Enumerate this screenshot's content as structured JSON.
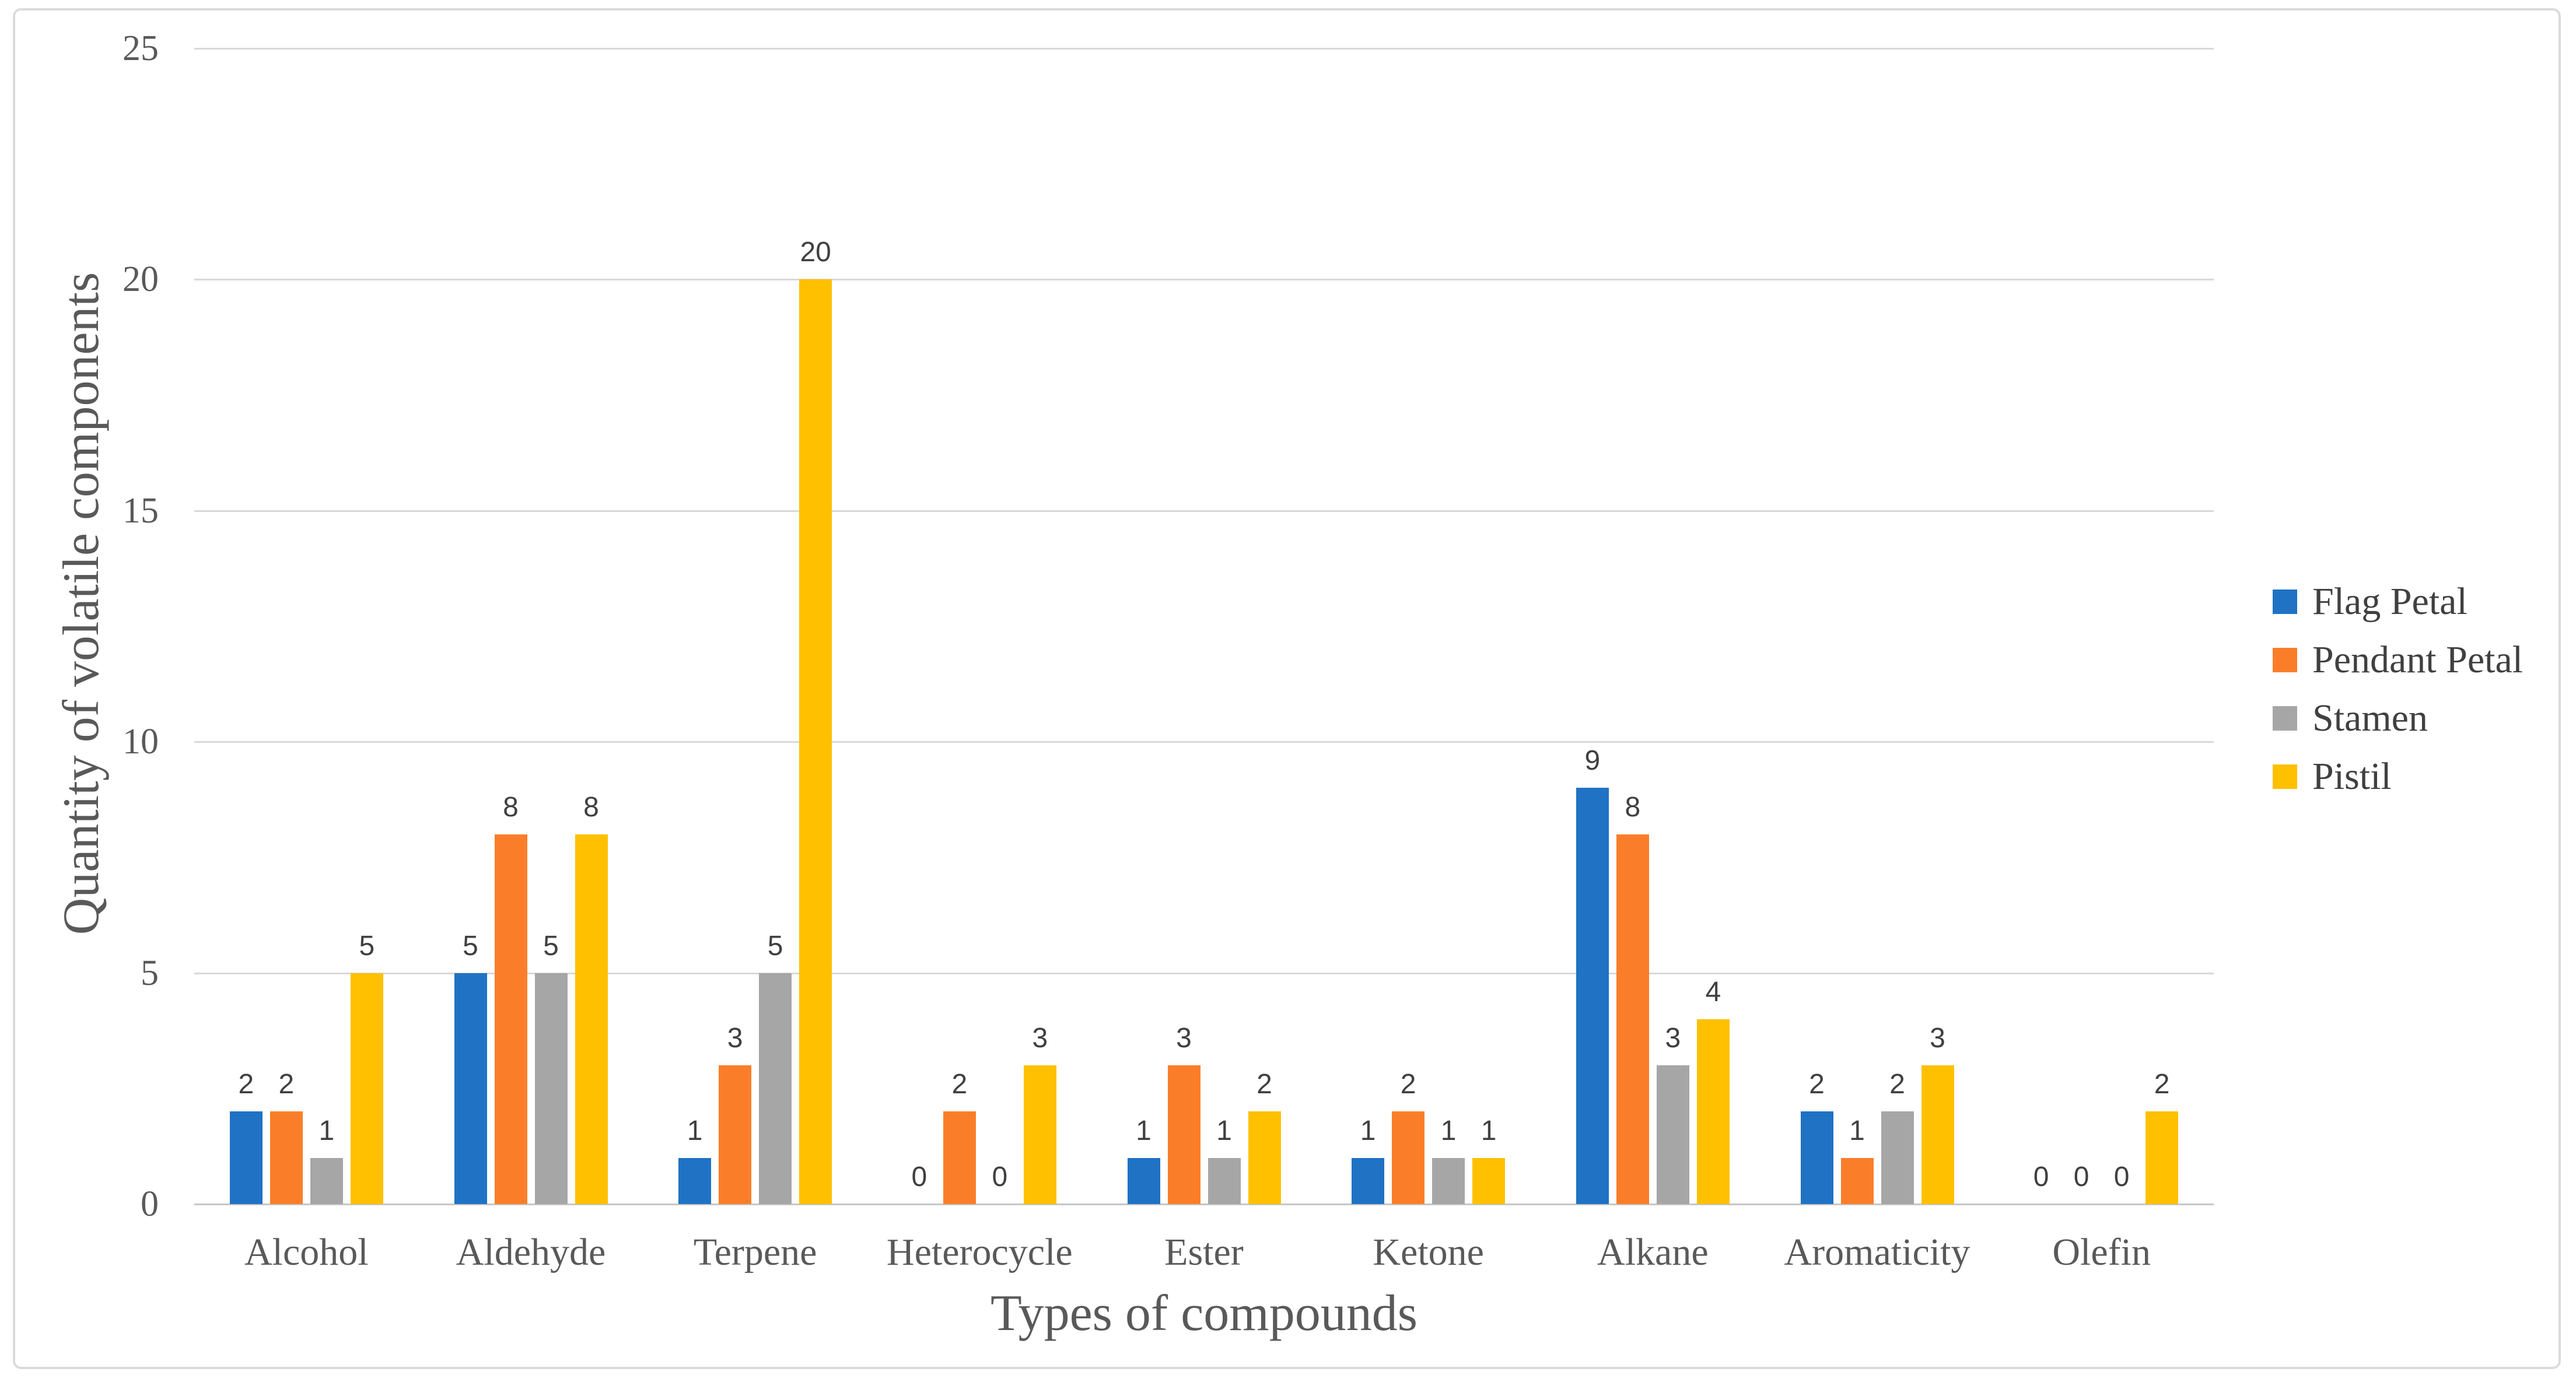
{
  "chart_data": {
    "type": "bar",
    "title": "",
    "xlabel": "Types of compounds",
    "ylabel": "Quantity of volatile components",
    "categories": [
      "Alcohol",
      "Aldehyde",
      "Terpene",
      "Heterocycle",
      "Ester",
      "Ketone",
      "Alkane",
      "Aromaticity",
      "Olefin"
    ],
    "series": [
      {
        "name": "Flag Petal",
        "color": "#1f72c4",
        "values": [
          2,
          5,
          1,
          0,
          1,
          1,
          9,
          2,
          0
        ]
      },
      {
        "name": "Pendant Petal",
        "color": "#fa7e2a",
        "values": [
          2,
          8,
          3,
          2,
          3,
          2,
          8,
          1,
          0
        ]
      },
      {
        "name": "Stamen",
        "color": "#a6a6a6",
        "values": [
          1,
          5,
          5,
          0,
          1,
          1,
          3,
          2,
          0
        ]
      },
      {
        "name": "Pistil",
        "color": "#ffc000",
        "values": [
          5,
          8,
          20,
          3,
          2,
          1,
          4,
          3,
          2
        ]
      }
    ],
    "yticks": [
      0,
      5,
      10,
      15,
      20,
      25
    ],
    "ylim": [
      0,
      25
    ],
    "grid": true,
    "data_labels": true,
    "legend_position": "right",
    "colors": {
      "gridline": "#d9d9d9",
      "axis_line": "#c6c6c6",
      "tick_text": "#595959",
      "data_label_text": "#404040",
      "frame_border": "#dbdbdb"
    }
  }
}
